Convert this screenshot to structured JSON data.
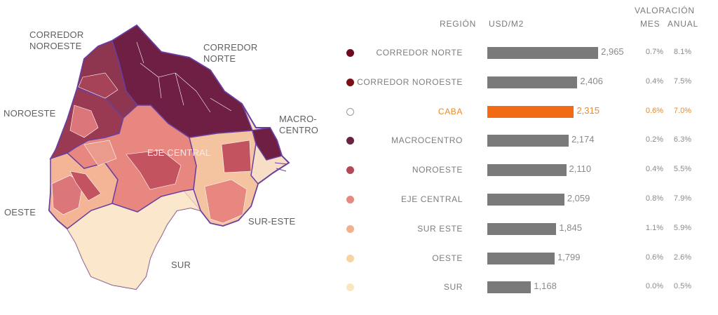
{
  "map": {
    "labels": [
      "CORREDOR\nNOROESTE",
      "CORREDOR\nNORTE",
      "NOROESTE",
      "MACRO-\nCENTRO",
      "EJE CENTRAL",
      "OESTE",
      "SUR-ESTE",
      "SUR"
    ]
  },
  "headers": {
    "region": "REGIÓN",
    "usd": "USD/M2",
    "valoracion": "VALORACIÓN",
    "mes": "MES",
    "anual": "ANUAL"
  },
  "colors": {
    "bar": "#7a7a7a",
    "highlight": "#f26a13",
    "highlight_text": "#e98a2a"
  },
  "chart_data": {
    "type": "bar",
    "orientation": "horizontal",
    "categories": [
      "CORREDOR NORTE",
      "CORREDOR NOROESTE",
      "CABA",
      "MACROCENTRO",
      "NOROESTE",
      "EJE CENTRAL",
      "SUR ESTE",
      "OESTE",
      "SUR"
    ],
    "values": [
      2965,
      2406,
      2315,
      2174,
      2110,
      2059,
      1845,
      1799,
      1168
    ],
    "value_labels": [
      "2,965",
      "2,406",
      "2,315",
      "2,174",
      "2,110",
      "2,059",
      "1,845",
      "1,799",
      "1,168"
    ],
    "mes": [
      "0.7%",
      "0.4%",
      "0.6%",
      "0.2%",
      "0.4%",
      "0.8%",
      "1.1%",
      "0.6%",
      "0.0%"
    ],
    "anual": [
      "8.1%",
      "7.5%",
      "7.0%",
      "6.3%",
      "5.5%",
      "7.9%",
      "5.9%",
      "2.6%",
      "0.5%"
    ],
    "dot_colors": [
      "#6e0a1e",
      "#7a0f15",
      "#ffffff",
      "#6b2140",
      "#b34857",
      "#e58a80",
      "#f3b08f",
      "#f8d4a5",
      "#fbe6bd"
    ],
    "highlight": "CABA",
    "xlim": [
      0,
      3000
    ]
  }
}
